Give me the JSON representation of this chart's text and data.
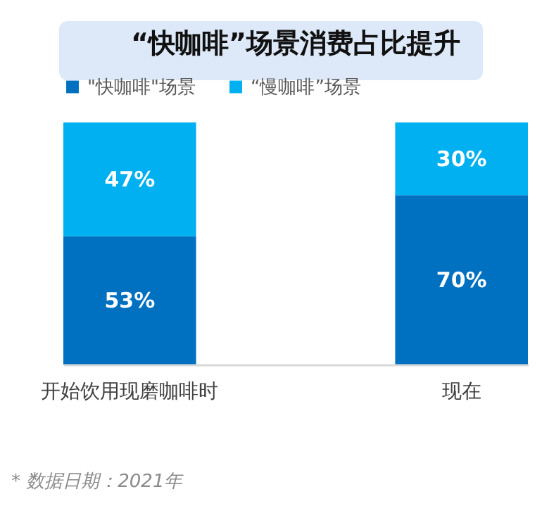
{
  "chart_data": {
    "type": "bar",
    "title": "“快咖啡”场景消费占比提升",
    "stacked": true,
    "legend": "top",
    "categories": [
      "开始饮用现磨咖啡时",
      "现在"
    ],
    "series": [
      {
        "name": "\"快咖啡\"场景",
        "color": "#0070c0",
        "values": [
          53,
          70
        ],
        "value_labels": [
          "53%",
          "70%"
        ]
      },
      {
        "name": "“慢咖啡”场景",
        "color": "#00b0f0",
        "values": [
          47,
          30
        ],
        "value_labels": [
          "47%",
          "30%"
        ]
      }
    ],
    "annotations": [
      "* 数据日期：2021年"
    ]
  }
}
